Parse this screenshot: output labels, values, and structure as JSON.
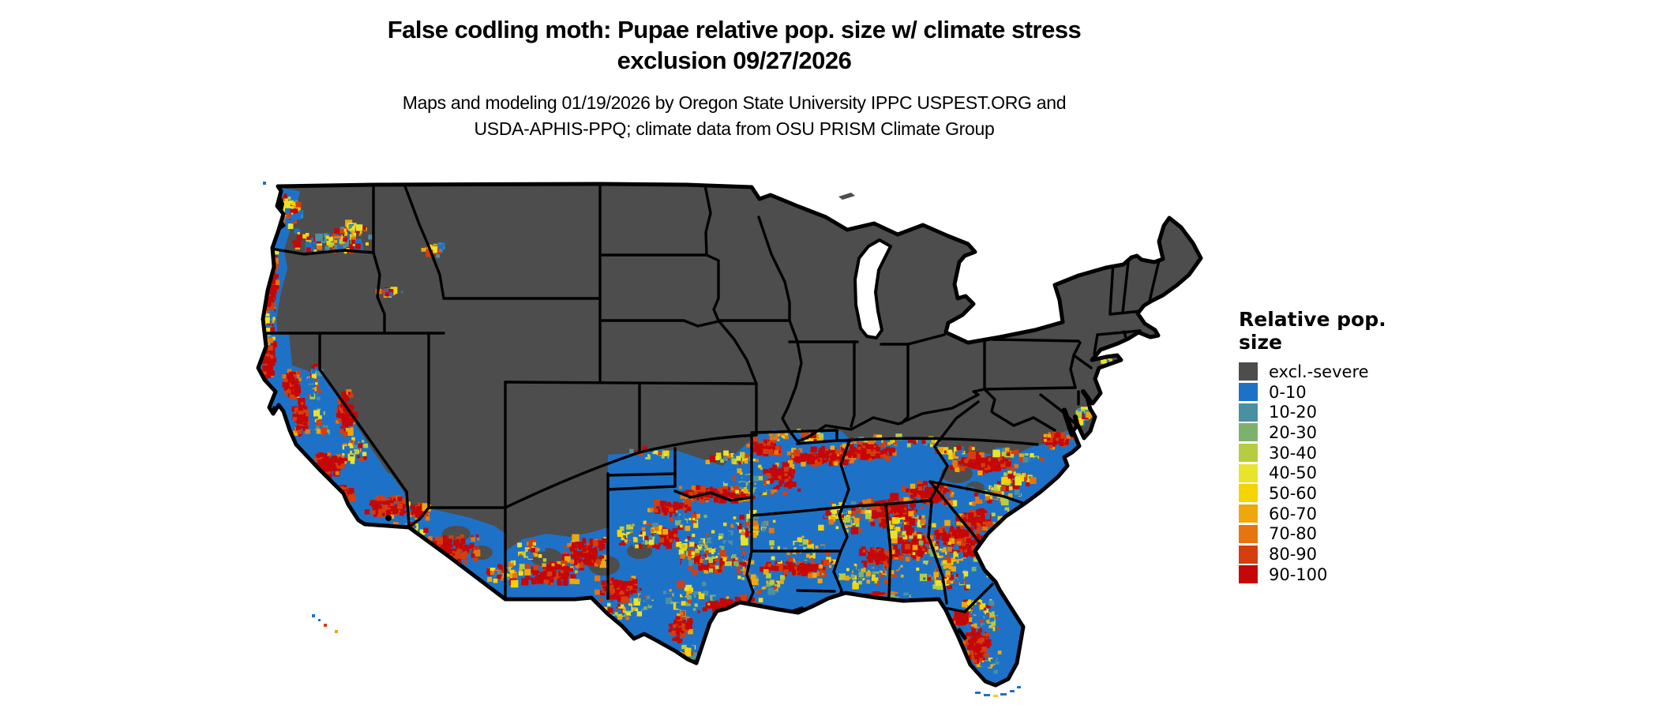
{
  "title": {
    "line1": "False codling moth: Pupae relative pop. size w/ climate stress",
    "line2": "exclusion 09/27/2026"
  },
  "subtitle": {
    "line1": "Maps and modeling 01/19/2026 by Oregon State University IPPC USPEST.ORG and",
    "line2": "USDA-APHIS-PPQ; climate data from OSU PRISM Climate Group"
  },
  "legend": {
    "title": "Relative pop. size",
    "items": [
      {
        "label": "excl.-severe",
        "color": "#4d4d4d"
      },
      {
        "label": "0-10",
        "color": "#1d72c8"
      },
      {
        "label": "10-20",
        "color": "#4b90a1"
      },
      {
        "label": "20-30",
        "color": "#7cb26d"
      },
      {
        "label": "30-40",
        "color": "#b6cd3f"
      },
      {
        "label": "40-50",
        "color": "#eae32b"
      },
      {
        "label": "50-60",
        "color": "#f4d403"
      },
      {
        "label": "60-70",
        "color": "#efa80b"
      },
      {
        "label": "70-80",
        "color": "#e67510"
      },
      {
        "label": "80-90",
        "color": "#d53e0d"
      },
      {
        "label": "90-100",
        "color": "#c50707"
      }
    ]
  },
  "map": {
    "excluded_fill": "#4d4d4d",
    "state_border": "#000000",
    "water": "#000000",
    "background": "#ffffff"
  }
}
